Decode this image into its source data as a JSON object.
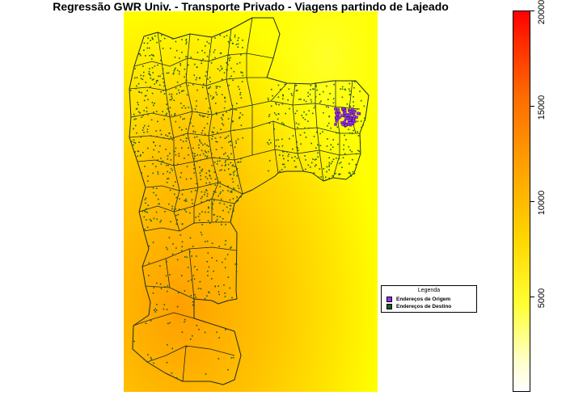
{
  "title": "Regressão GWR Univ. - Transporte Privado - Viagens partindo de Lajeado",
  "legend": {
    "title": "Legenda",
    "items": [
      {
        "label": "Endereços de Origem",
        "color": "#9b30ff"
      },
      {
        "label": "Endereços de Destino",
        "color": "#1a5e20"
      }
    ]
  },
  "colorbar": {
    "min": 0,
    "max": 20000,
    "ticks": [
      "5000",
      "10000",
      "15000",
      "20000"
    ],
    "colors": [
      "#ffffff",
      "#ffff00",
      "#ffa500",
      "#ff0000"
    ]
  },
  "colors": {
    "boundary": "#1a2a1a",
    "origin_points": "#9b30ff",
    "destination_points": "#1a5e20"
  }
}
